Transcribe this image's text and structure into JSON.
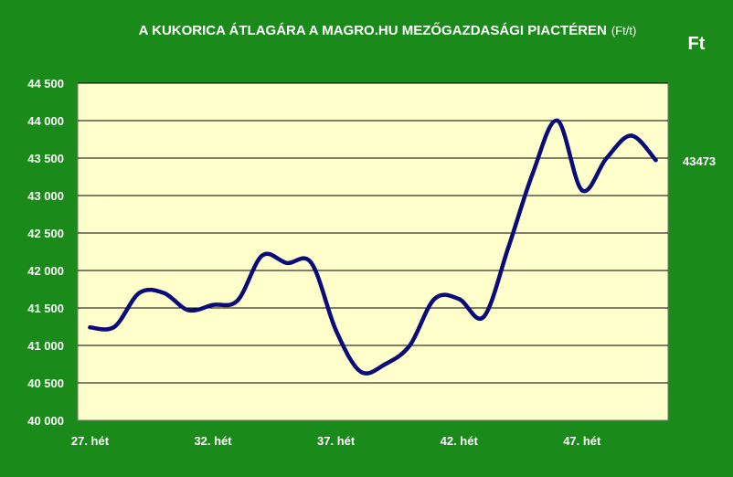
{
  "chart_data": {
    "type": "line",
    "title": "A KUKORICA ÁTLAGÁRA A MAGRO.HU MEZŐGAZDASÁGI PIACTÉREN",
    "title_unit": "(Ft/t)",
    "unit_corner": "Ft",
    "xlabel": "",
    "ylabel": "",
    "ylim": [
      40000,
      44500
    ],
    "y_ticks": [
      40000,
      40500,
      41000,
      41500,
      42000,
      42500,
      43000,
      43500,
      44000,
      44500
    ],
    "y_tick_labels": [
      "40 000",
      "40 500",
      "41 000",
      "41 500",
      "42 000",
      "42 500",
      "43 000",
      "43 500",
      "44 000",
      "44 500"
    ],
    "x_tick_labels": [
      {
        "week": 27,
        "label": "27. hét"
      },
      {
        "week": 32,
        "label": "32. hét"
      },
      {
        "week": 37,
        "label": "37. hét"
      },
      {
        "week": 42,
        "label": "42. hét"
      },
      {
        "week": 47,
        "label": "47. hét"
      }
    ],
    "xlim": [
      26.5,
      50.5
    ],
    "grid": true,
    "legend": "none",
    "colors": {
      "background": "#1a8a1a",
      "plot_area": "#ffffcc",
      "line": "#0a0a7a",
      "grid": "#000000"
    },
    "series": [
      {
        "x": [
          27,
          28,
          29,
          30,
          31,
          32,
          33,
          34,
          35,
          36,
          37,
          38,
          39,
          40,
          41,
          42,
          43,
          44,
          45,
          46,
          47,
          48,
          49,
          50
        ],
        "values": [
          41240,
          41250,
          41700,
          41700,
          41470,
          41540,
          41600,
          42200,
          42100,
          42100,
          41200,
          40650,
          40750,
          41000,
          41620,
          41620,
          41380,
          42300,
          43300,
          44000,
          43070,
          43500,
          43800,
          43473
        ]
      }
    ],
    "last_value_label": "43473"
  }
}
